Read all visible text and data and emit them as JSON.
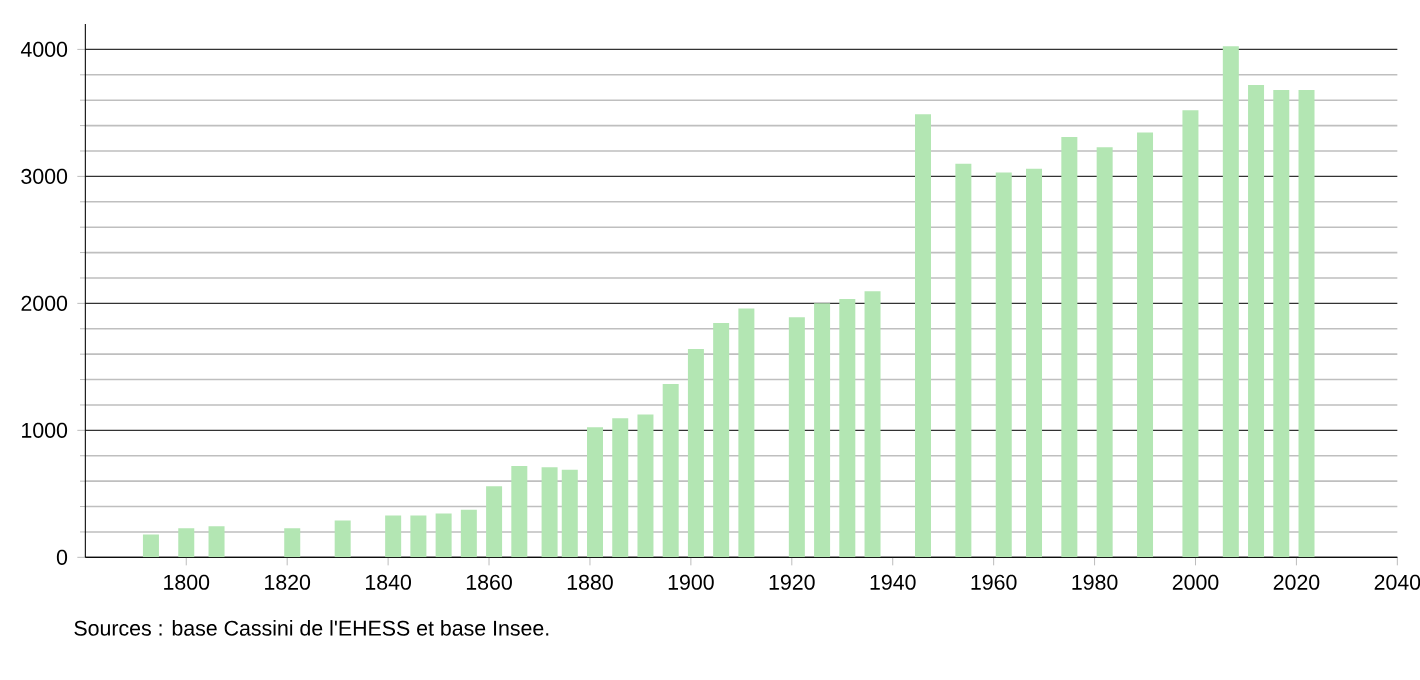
{
  "chart_data": {
    "type": "bar",
    "x": [
      1793,
      1800,
      1806,
      1821,
      1831,
      1841,
      1846,
      1851,
      1856,
      1861,
      1866,
      1872,
      1876,
      1881,
      1886,
      1891,
      1896,
      1901,
      1906,
      1911,
      1921,
      1926,
      1931,
      1936,
      1946,
      1954,
      1962,
      1968,
      1975,
      1982,
      1990,
      1999,
      2007,
      2012,
      2017,
      2022
    ],
    "values": [
      180,
      230,
      245,
      230,
      290,
      330,
      330,
      345,
      375,
      560,
      720,
      710,
      690,
      1025,
      1095,
      1125,
      1365,
      1640,
      1845,
      1960,
      1890,
      2000,
      2035,
      2095,
      3490,
      3100,
      3030,
      3060,
      3310,
      3230,
      3345,
      3520,
      4025,
      3720,
      3680,
      3680
    ],
    "color": "#b3e6b3",
    "xlim": [
      1780,
      2040
    ],
    "xticks": [
      1800,
      1820,
      1840,
      1860,
      1880,
      1900,
      1920,
      1940,
      1960,
      1980,
      2000,
      2020,
      2040
    ],
    "ylim": [
      0,
      4200
    ],
    "yticks": [
      0,
      1000,
      2000,
      3000,
      4000
    ],
    "grid": "y",
    "annotations": [
      "Sources : base Cassini de l'EHESS et base Insee."
    ]
  }
}
